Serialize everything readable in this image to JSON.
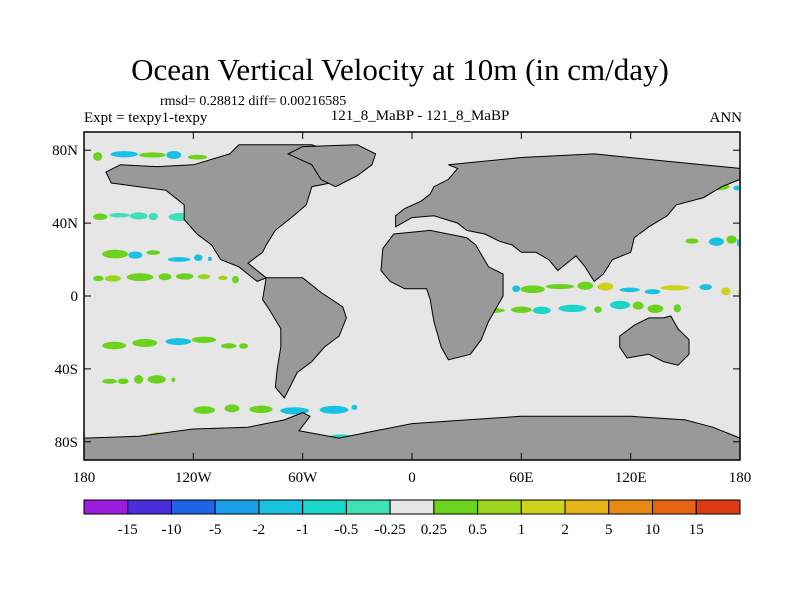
{
  "title": "Ocean Vertical Velocity at 10m (in cm/day)",
  "subtitle": "rmsd= 0.28812 diff= 0.00216585",
  "left_label": "Expt = texpy1-texpy",
  "center_label": "121_8_MaBP - 121_8_MaBP",
  "right_label": "ANN",
  "chart_data": {
    "type": "heatmap",
    "title": "Ocean Vertical Velocity at 10m (in cm/day)",
    "xlabel": "",
    "ylabel": "",
    "xlim": [
      -180,
      180
    ],
    "ylim": [
      -90,
      90
    ],
    "x_ticks": [
      {
        "value": -180,
        "label": "180"
      },
      {
        "value": -120,
        "label": "120W"
      },
      {
        "value": -60,
        "label": "60W"
      },
      {
        "value": 0,
        "label": "0"
      },
      {
        "value": 60,
        "label": "60E"
      },
      {
        "value": 120,
        "label": "120E"
      },
      {
        "value": 180,
        "label": "180"
      }
    ],
    "y_ticks": [
      {
        "value": 80,
        "label": "80N"
      },
      {
        "value": 40,
        "label": "40N"
      },
      {
        "value": 0,
        "label": "0"
      },
      {
        "value": -40,
        "label": "40S"
      },
      {
        "value": -80,
        "label": "80S"
      }
    ],
    "colorbar": {
      "levels": [
        "-15",
        "-10",
        "-5",
        "-2",
        "-1",
        "-0.5",
        "-0.25",
        "0.25",
        "0.5",
        "1",
        "2",
        "5",
        "10",
        "15"
      ],
      "colors": [
        "#9b1de0",
        "#4a2ed9",
        "#1f63e6",
        "#1c9fe8",
        "#18c2e0",
        "#18d6c8",
        "#3ee0b4",
        "#e6e6e6",
        "#6bd21e",
        "#9ad41c",
        "#cfd21c",
        "#e6b41a",
        "#e68a14",
        "#e66414",
        "#e03a12"
      ]
    },
    "land_color": "#999999",
    "ocean_background": "#e6e6e6",
    "landmasses": [
      {
        "name": "north-america",
        "points": [
          [
            -95,
            83
          ],
          [
            -55,
            83
          ],
          [
            -40,
            78
          ],
          [
            -30,
            72
          ],
          [
            -45,
            62
          ],
          [
            -55,
            60
          ],
          [
            -58,
            50
          ],
          [
            -65,
            44
          ],
          [
            -75,
            36
          ],
          [
            -80,
            28
          ],
          [
            -82,
            24
          ],
          [
            -90,
            18
          ],
          [
            -85,
            14
          ],
          [
            -80,
            10
          ],
          [
            -85,
            8
          ],
          [
            -95,
            16
          ],
          [
            -105,
            20
          ],
          [
            -110,
            28
          ],
          [
            -118,
            34
          ],
          [
            -125,
            42
          ],
          [
            -125,
            50
          ],
          [
            -135,
            58
          ],
          [
            -150,
            60
          ],
          [
            -165,
            62
          ],
          [
            -168,
            68
          ],
          [
            -160,
            72
          ],
          [
            -140,
            71
          ],
          [
            -120,
            72
          ],
          [
            -100,
            78
          ]
        ]
      },
      {
        "name": "greenland",
        "points": [
          [
            -60,
            82
          ],
          [
            -30,
            83
          ],
          [
            -20,
            78
          ],
          [
            -22,
            72
          ],
          [
            -30,
            66
          ],
          [
            -42,
            60
          ],
          [
            -50,
            64
          ],
          [
            -55,
            72
          ],
          [
            -68,
            78
          ]
        ]
      },
      {
        "name": "eurasia",
        "points": [
          [
            20,
            72
          ],
          [
            60,
            76
          ],
          [
            100,
            78
          ],
          [
            140,
            74
          ],
          [
            180,
            70
          ],
          [
            180,
            64
          ],
          [
            170,
            60
          ],
          [
            160,
            54
          ],
          [
            145,
            50
          ],
          [
            140,
            44
          ],
          [
            130,
            38
          ],
          [
            122,
            32
          ],
          [
            120,
            24
          ],
          [
            110,
            20
          ],
          [
            105,
            12
          ],
          [
            100,
            8
          ],
          [
            95,
            16
          ],
          [
            90,
            22
          ],
          [
            80,
            14
          ],
          [
            75,
            20
          ],
          [
            68,
            24
          ],
          [
            60,
            24
          ],
          [
            55,
            28
          ],
          [
            48,
            30
          ],
          [
            40,
            34
          ],
          [
            30,
            36
          ],
          [
            25,
            40
          ],
          [
            12,
            44
          ],
          [
            0,
            43
          ],
          [
            -9,
            38
          ],
          [
            -9,
            44
          ],
          [
            -4,
            48
          ],
          [
            5,
            52
          ],
          [
            10,
            56
          ],
          [
            12,
            60
          ],
          [
            20,
            64
          ],
          [
            25,
            70
          ]
        ]
      },
      {
        "name": "south-america",
        "points": [
          [
            -80,
            10
          ],
          [
            -60,
            10
          ],
          [
            -50,
            2
          ],
          [
            -38,
            -6
          ],
          [
            -36,
            -12
          ],
          [
            -40,
            -22
          ],
          [
            -48,
            -28
          ],
          [
            -55,
            -36
          ],
          [
            -63,
            -42
          ],
          [
            -66,
            -48
          ],
          [
            -70,
            -56
          ],
          [
            -75,
            -50
          ],
          [
            -74,
            -40
          ],
          [
            -72,
            -28
          ],
          [
            -72,
            -18
          ],
          [
            -78,
            -8
          ],
          [
            -82,
            -2
          ]
        ]
      },
      {
        "name": "africa",
        "points": [
          [
            -16,
            26
          ],
          [
            -10,
            34
          ],
          [
            10,
            36
          ],
          [
            30,
            32
          ],
          [
            35,
            28
          ],
          [
            42,
            16
          ],
          [
            50,
            12
          ],
          [
            50,
            0
          ],
          [
            42,
            -14
          ],
          [
            38,
            -24
          ],
          [
            32,
            -32
          ],
          [
            20,
            -35
          ],
          [
            16,
            -28
          ],
          [
            12,
            -14
          ],
          [
            10,
            -2
          ],
          [
            8,
            4
          ],
          [
            -4,
            4
          ],
          [
            -12,
            8
          ],
          [
            -17,
            14
          ]
        ]
      },
      {
        "name": "australia",
        "points": [
          [
            114,
            -22
          ],
          [
            122,
            -16
          ],
          [
            130,
            -12
          ],
          [
            138,
            -12
          ],
          [
            142,
            -11
          ],
          [
            146,
            -18
          ],
          [
            152,
            -24
          ],
          [
            152,
            -32
          ],
          [
            146,
            -38
          ],
          [
            138,
            -36
          ],
          [
            130,
            -32
          ],
          [
            118,
            -34
          ],
          [
            114,
            -28
          ]
        ]
      },
      {
        "name": "antarctica",
        "points": [
          [
            -180,
            -78
          ],
          [
            -150,
            -77
          ],
          [
            -120,
            -73
          ],
          [
            -90,
            -72
          ],
          [
            -70,
            -68
          ],
          [
            -60,
            -64
          ],
          [
            -56,
            -66
          ],
          [
            -62,
            -74
          ],
          [
            -40,
            -78
          ],
          [
            -20,
            -74
          ],
          [
            0,
            -70
          ],
          [
            30,
            -68
          ],
          [
            60,
            -66
          ],
          [
            90,
            -66
          ],
          [
            120,
            -66
          ],
          [
            150,
            -68
          ],
          [
            165,
            -72
          ],
          [
            180,
            -78
          ],
          [
            180,
            -90
          ],
          [
            -180,
            -90
          ]
        ]
      }
    ],
    "field_bands": [
      {
        "lat": -84,
        "lon_start": -180,
        "lon_end": 180,
        "amp": 4,
        "colors": [
          "#1f63e6",
          "#18c2e0",
          "#cfd21c",
          "#e6b41a",
          "#6bd21e"
        ]
      },
      {
        "lat": -79,
        "lon_start": -180,
        "lon_end": 180,
        "amp": 3,
        "colors": [
          "#18d6c8",
          "#1c9fe8",
          "#9ad41c",
          "#e68a14"
        ]
      },
      {
        "lat": 78,
        "lon_start": -175,
        "lon_end": -110,
        "amp": 2,
        "colors": [
          "#6bd21e",
          "#18c2e0"
        ]
      },
      {
        "lat": 44,
        "lon_start": -175,
        "lon_end": -120,
        "amp": 1,
        "colors": [
          "#3ee0b4",
          "#6bd21e"
        ]
      },
      {
        "lat": 22,
        "lon_start": -170,
        "lon_end": -110,
        "amp": 2,
        "colors": [
          "#18c2e0",
          "#6bd21e"
        ]
      },
      {
        "lat": 10,
        "lon_start": -175,
        "lon_end": -95,
        "amp": 1,
        "colors": [
          "#6bd21e",
          "#9ad41c"
        ]
      },
      {
        "lat": 4,
        "lon_start": 55,
        "lon_end": 180,
        "amp": 2,
        "colors": [
          "#cfd21c",
          "#18c2e0",
          "#6bd21e"
        ]
      },
      {
        "lat": -6,
        "lon_start": 35,
        "lon_end": 150,
        "amp": 2,
        "colors": [
          "#6bd21e",
          "#18d6c8"
        ]
      },
      {
        "lat": -26,
        "lon_start": -170,
        "lon_end": -90,
        "amp": 2,
        "colors": [
          "#6bd21e",
          "#18c2e0"
        ]
      },
      {
        "lat": -46,
        "lon_start": -170,
        "lon_end": -130,
        "amp": 1,
        "colors": [
          "#6bd21e"
        ]
      },
      {
        "lat": -62,
        "lon_start": -120,
        "lon_end": -30,
        "amp": 1,
        "colors": [
          "#18c2e0",
          "#6bd21e"
        ]
      },
      {
        "lat": 60,
        "lon_start": 120,
        "lon_end": 180,
        "amp": 1,
        "colors": [
          "#18c2e0",
          "#6bd21e"
        ]
      },
      {
        "lat": 30,
        "lon_start": 150,
        "lon_end": 180,
        "amp": 1,
        "colors": [
          "#6bd21e",
          "#18c2e0"
        ]
      }
    ]
  }
}
